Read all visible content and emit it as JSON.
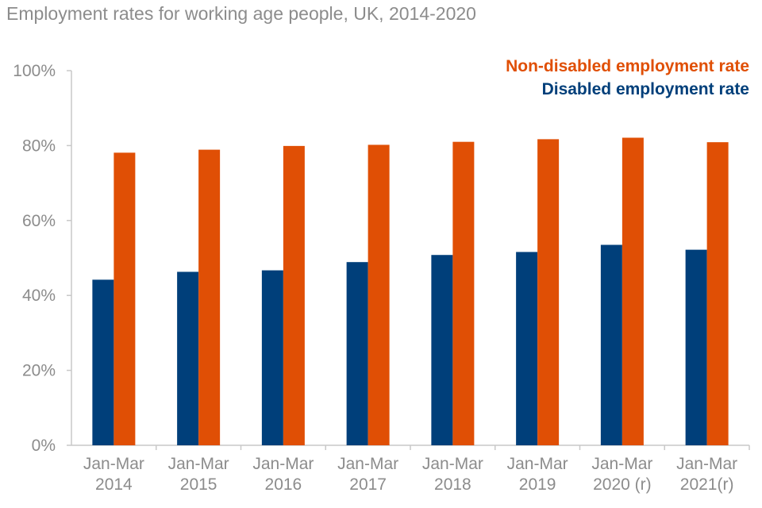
{
  "chart_data": {
    "type": "bar",
    "title": "Employment rates for working age people, UK, 2014-2020",
    "categories": [
      [
        "Jan-Mar",
        "2014"
      ],
      [
        "Jan-Mar",
        "2015"
      ],
      [
        "Jan-Mar",
        "2016"
      ],
      [
        "Jan-Mar",
        "2017"
      ],
      [
        "Jan-Mar",
        "2018"
      ],
      [
        "Jan-Mar",
        "2019"
      ],
      [
        "Jan-Mar",
        "2020 (r)"
      ],
      [
        "Jan-Mar",
        "2021(r)"
      ]
    ],
    "series": [
      {
        "name": "Disabled employment rate",
        "color": "#003f7a",
        "values": [
          44.2,
          46.3,
          46.7,
          48.9,
          50.8,
          51.6,
          53.5,
          52.2
        ]
      },
      {
        "name": "Non-disabled employment rate",
        "color": "#e04f05",
        "values": [
          78.1,
          78.9,
          79.9,
          80.2,
          81.0,
          81.7,
          82.1,
          80.9
        ]
      }
    ],
    "yticks": [
      "0%",
      "20%",
      "40%",
      "60%",
      "80%",
      "100%"
    ],
    "ytick_values": [
      0,
      20,
      40,
      60,
      80,
      100
    ],
    "ylim": [
      0,
      100
    ],
    "xlabel": "",
    "ylabel": "",
    "grid": false,
    "legend": {
      "placement": "top-right",
      "entries": [
        "Non-disabled employment rate",
        "Disabled employment rate"
      ]
    }
  }
}
